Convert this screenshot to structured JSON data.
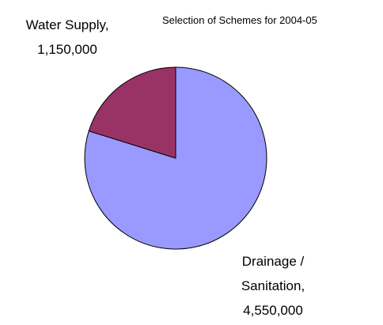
{
  "chart_data": {
    "type": "pie",
    "title": "Selection of Schemes for 2004-05",
    "categories": [
      "Drainage / Sanitation,",
      "Water Supply,"
    ],
    "values": [
      4550000,
      1150000
    ],
    "value_labels": [
      "4,550,000",
      "1,150,000"
    ],
    "colors": [
      "#9999ff",
      "#993366"
    ]
  }
}
